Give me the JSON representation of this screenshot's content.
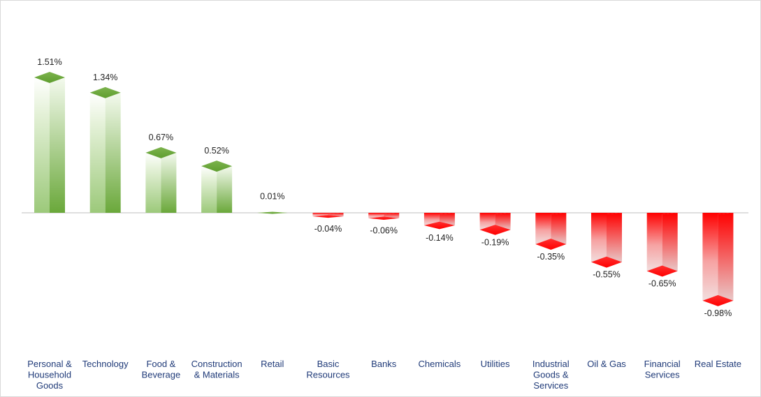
{
  "chart_data": {
    "type": "bar",
    "title": "",
    "xlabel": "",
    "ylabel": "",
    "categories": [
      [
        "Personal &",
        "Household",
        "Goods"
      ],
      [
        "Technology"
      ],
      [
        "Food &",
        "Beverage"
      ],
      [
        "Construction",
        "& Materials"
      ],
      [
        "Retail"
      ],
      [
        "Basic",
        "Resources"
      ],
      [
        "Banks"
      ],
      [
        "Chemicals"
      ],
      [
        "Utilities"
      ],
      [
        "Industrial",
        "Goods &",
        "Services"
      ],
      [
        "Oil & Gas"
      ],
      [
        "Financial",
        "Services"
      ],
      [
        "Real Estate"
      ]
    ],
    "values": [
      1.51,
      1.34,
      0.67,
      0.52,
      0.01,
      -0.04,
      -0.06,
      -0.14,
      -0.19,
      -0.35,
      -0.55,
      -0.65,
      -0.98
    ],
    "labels": [
      "1.51%",
      "1.34%",
      "0.67%",
      "0.52%",
      "0.01%",
      "-0.04%",
      "-0.06%",
      "-0.14%",
      "-0.19%",
      "-0.35%",
      "-0.55%",
      "-0.65%",
      "-0.98%"
    ],
    "ylim": [
      -0.98,
      1.51
    ],
    "grid": false,
    "legend": "none",
    "colors": {
      "positive_dark": "#5f9e2f",
      "positive_light": "#e6f2da",
      "negative_dark": "#ff0000",
      "negative_light": "#f2dede",
      "axis": "#bfbfbf",
      "category_text": "#1f3a78",
      "value_text": "#222222"
    }
  }
}
